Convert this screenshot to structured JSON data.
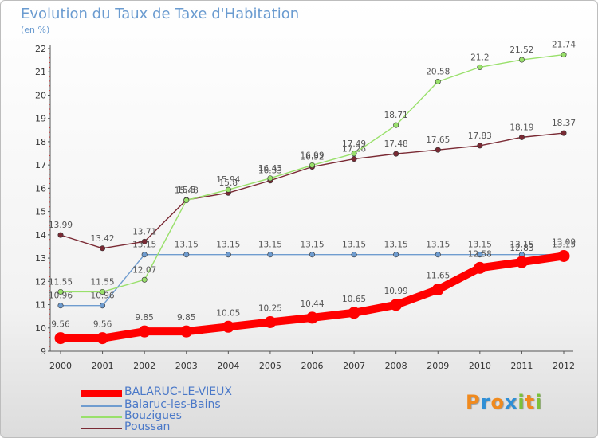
{
  "header": {
    "title": "Evolution du Taux de Taxe d'Habitation",
    "unit": "(en %)"
  },
  "legend": [
    {
      "name": "BALARUC-LE-VIEUX",
      "color": "#ff0000"
    },
    {
      "name": "Balaruc-les-Bains",
      "color": "#6f9ccf"
    },
    {
      "name": "Bouzigues",
      "color": "#99e06b"
    },
    {
      "name": "Poussan",
      "color": "#7a2a34"
    }
  ],
  "logo": {
    "text": "Proxiti",
    "colors": [
      "#f08a1e",
      "#2f8fd6",
      "#f08a1e",
      "#2f8fd6",
      "#7cc13a",
      "#f08a1e",
      "#7cc13a"
    ]
  },
  "chart_data": {
    "type": "line",
    "title": "Evolution du Taux de Taxe d'Habitation",
    "subtitle": "(en %)",
    "x": [
      "2000",
      "2001",
      "2002",
      "2003",
      "2004",
      "2005",
      "2006",
      "2007",
      "2008",
      "2009",
      "2010",
      "2011",
      "2012"
    ],
    "ylim": [
      9,
      22
    ],
    "yticks": [
      9,
      10,
      11,
      12,
      13,
      14,
      15,
      16,
      17,
      18,
      19,
      20,
      21,
      22
    ],
    "grid": false,
    "legend_position": "bottom-left",
    "series": [
      {
        "name": "BALARUC-LE-VIEUX",
        "color": "#ff0000",
        "values": [
          9.56,
          9.56,
          9.85,
          9.85,
          10.05,
          10.25,
          10.44,
          10.65,
          10.99,
          11.65,
          12.58,
          12.83,
          13.09
        ]
      },
      {
        "name": "Balaruc-les-Bains",
        "color": "#6f9ccf",
        "values": [
          10.96,
          10.96,
          13.15,
          13.15,
          13.15,
          13.15,
          13.15,
          13.15,
          13.15,
          13.15,
          13.15,
          13.15,
          13.15
        ]
      },
      {
        "name": "Bouzigues",
        "color": "#99e06b",
        "values": [
          11.55,
          11.55,
          12.07,
          15.48,
          15.94,
          16.43,
          16.99,
          17.49,
          18.71,
          20.58,
          21.2,
          21.52,
          21.74
        ]
      },
      {
        "name": "Poussan",
        "color": "#7a2a34",
        "values": [
          13.99,
          13.42,
          13.71,
          15.5,
          15.8,
          16.33,
          16.92,
          17.26,
          17.48,
          17.65,
          17.83,
          18.19,
          18.37
        ]
      }
    ]
  }
}
